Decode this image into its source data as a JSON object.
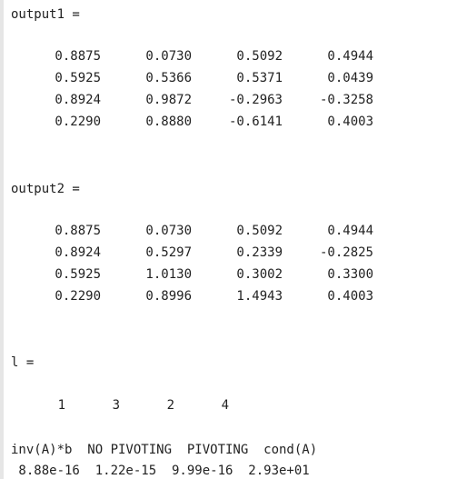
{
  "output1": {
    "header": "output1 =",
    "rows": [
      [
        "0.8875",
        "0.0730",
        "0.5092",
        "0.4944"
      ],
      [
        "0.5925",
        "0.5366",
        "0.5371",
        "0.0439"
      ],
      [
        "0.8924",
        "0.9872",
        "-0.2963",
        "-0.3258"
      ],
      [
        "0.2290",
        "0.8880",
        "-0.6141",
        "0.4003"
      ]
    ]
  },
  "output2": {
    "header": "output2 =",
    "rows": [
      [
        "0.8875",
        "0.0730",
        "0.5092",
        "0.4944"
      ],
      [
        "0.8924",
        "0.5297",
        "0.2339",
        "-0.2825"
      ],
      [
        "0.5925",
        "1.0130",
        "0.3002",
        "0.3300"
      ],
      [
        "0.2290",
        "0.8996",
        "1.4943",
        "0.4003"
      ]
    ]
  },
  "l": {
    "header": "l =",
    "values": [
      "1",
      "3",
      "2",
      "4"
    ]
  },
  "summary": {
    "header_line": "inv(A)*b  NO PIVOTING  PIVOTING  cond(A)",
    "value_line": " 8.88e-16  1.22e-15  9.99e-16  2.93e+01"
  }
}
